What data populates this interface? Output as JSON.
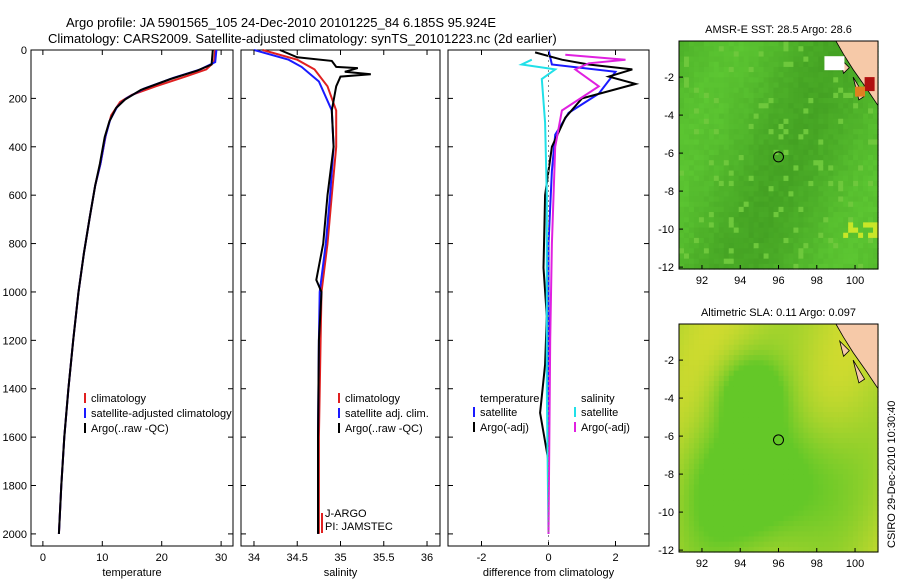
{
  "title": {
    "line1": "Argo profile: JA 5901565_105 24-Dec-2010 20101225_84 6.185S 95.924E",
    "line2": "Climatology: CARS2009. Satellite-adjusted climatology: synTS_20101223.nc (2d earlier)"
  },
  "side_label": "CSIRO 29-Dec-2010 10:30:40",
  "colors": {
    "climatology": "#e02020",
    "satellite": "#1a1aff",
    "argo": "#000000",
    "cyan": "#20e0e8",
    "magenta": "#e020e0"
  },
  "chart_data": [
    {
      "type": "line",
      "xlabel": "temperature",
      "xlim": [
        -2,
        32
      ],
      "ylim": [
        2050,
        0
      ],
      "xticks": [
        "0",
        "10",
        "20",
        "30"
      ],
      "yticks": [
        "0",
        "200",
        "400",
        "600",
        "800",
        "1000",
        "1200",
        "1400",
        "1600",
        "1800",
        "2000"
      ],
      "legend": [
        "climatology",
        "satellite-adjusted climatology",
        "Argo(..raw -QC)"
      ],
      "series": [
        {
          "color": "climatology",
          "points": [
            [
              29.0,
              0
            ],
            [
              28.8,
              50
            ],
            [
              27.5,
              80
            ],
            [
              24.0,
              110
            ],
            [
              19.0,
              150
            ],
            [
              15.0,
              185
            ],
            [
              13.0,
              215
            ],
            [
              11.5,
              270
            ],
            [
              10.6,
              350
            ],
            [
              9.7,
              470
            ],
            [
              8.8,
              560
            ],
            [
              7.9,
              690
            ],
            [
              6.9,
              840
            ],
            [
              6.0,
              1000
            ],
            [
              5.1,
              1200
            ],
            [
              4.3,
              1400
            ],
            [
              3.6,
              1600
            ],
            [
              3.1,
              1800
            ],
            [
              2.7,
              2000
            ]
          ]
        },
        {
          "color": "satellite",
          "points": [
            [
              29.2,
              0
            ],
            [
              29.0,
              50
            ],
            [
              26.5,
              80
            ],
            [
              22.0,
              115
            ],
            [
              17.0,
              160
            ],
            [
              14.0,
              200
            ],
            [
              12.5,
              235
            ],
            [
              11.3,
              290
            ],
            [
              10.5,
              360
            ],
            [
              9.7,
              470
            ],
            [
              8.8,
              560
            ],
            [
              7.9,
              690
            ],
            [
              6.9,
              840
            ],
            [
              6.0,
              1000
            ],
            [
              5.1,
              1200
            ],
            [
              4.3,
              1400
            ],
            [
              3.6,
              1600
            ],
            [
              3.1,
              1800
            ],
            [
              2.7,
              2000
            ]
          ]
        },
        {
          "color": "argo",
          "points": [
            [
              28.6,
              0
            ],
            [
              28.4,
              60
            ],
            [
              26.0,
              85
            ],
            [
              21.5,
              120
            ],
            [
              16.5,
              165
            ],
            [
              13.8,
              205
            ],
            [
              12.3,
              240
            ],
            [
              11.2,
              295
            ],
            [
              10.4,
              360
            ],
            [
              9.6,
              470
            ],
            [
              8.8,
              560
            ],
            [
              7.9,
              690
            ],
            [
              6.9,
              840
            ],
            [
              6.0,
              1000
            ],
            [
              5.1,
              1200
            ],
            [
              4.3,
              1400
            ],
            [
              3.6,
              1600
            ],
            [
              3.1,
              1800
            ],
            [
              2.7,
              2000
            ]
          ]
        }
      ]
    },
    {
      "type": "line",
      "xlabel": "salinity",
      "xlim": [
        33.85,
        36.15
      ],
      "ylim": [
        2050,
        0
      ],
      "xticks": [
        "34",
        "34.5",
        "35",
        "35.5",
        "36"
      ],
      "legend": [
        "climatology",
        "satellite adj. clim.",
        "Argo(..raw -QC)"
      ],
      "annotations": [
        "J-ARGO",
        "PI: JAMSTEC"
      ],
      "series": [
        {
          "color": "climatology",
          "points": [
            [
              34.1,
              0
            ],
            [
              34.5,
              40
            ],
            [
              34.7,
              80
            ],
            [
              34.85,
              150
            ],
            [
              34.95,
              250
            ],
            [
              34.95,
              400
            ],
            [
              34.9,
              600
            ],
            [
              34.85,
              800
            ],
            [
              34.78,
              1000
            ],
            [
              34.77,
              1200
            ],
            [
              34.75,
              1600
            ],
            [
              34.75,
              2000
            ]
          ]
        },
        {
          "color": "satellite",
          "points": [
            [
              34.0,
              0
            ],
            [
              34.4,
              40
            ],
            [
              34.55,
              70
            ],
            [
              34.75,
              130
            ],
            [
              34.9,
              250
            ],
            [
              34.92,
              400
            ],
            [
              34.88,
              600
            ],
            [
              34.83,
              800
            ],
            [
              34.76,
              1000
            ],
            [
              34.75,
              1200
            ],
            [
              34.74,
              1600
            ],
            [
              34.74,
              2000
            ]
          ]
        },
        {
          "color": "argo",
          "points": [
            [
              34.3,
              0
            ],
            [
              34.5,
              30
            ],
            [
              34.9,
              45
            ],
            [
              34.95,
              70
            ],
            [
              35.2,
              75
            ],
            [
              35.05,
              90
            ],
            [
              35.35,
              100
            ],
            [
              35.0,
              110
            ],
            [
              34.95,
              150
            ],
            [
              34.9,
              250
            ],
            [
              34.92,
              400
            ],
            [
              34.85,
              600
            ],
            [
              34.8,
              800
            ],
            [
              34.72,
              950
            ],
            [
              34.78,
              1000
            ],
            [
              34.75,
              1200
            ],
            [
              34.74,
              1600
            ],
            [
              34.74,
              2000
            ]
          ]
        }
      ]
    },
    {
      "type": "line",
      "xlabel": "difference from climatology",
      "xlim": [
        -3.0,
        3.0
      ],
      "ylim": [
        2050,
        0
      ],
      "xticks": [
        "-2",
        "0",
        "2"
      ],
      "legend": [
        "temperature",
        "satellite",
        "Argo(-adj)",
        "salinity",
        "satellite",
        "Argo(-adj)"
      ],
      "series": [
        {
          "color": "satellite",
          "points": [
            [
              0,
              0
            ],
            [
              0.1,
              60
            ],
            [
              2.0,
              90
            ],
            [
              1.5,
              180
            ],
            [
              0.6,
              260
            ],
            [
              0.2,
              350
            ],
            [
              0.1,
              500
            ],
            [
              0,
              800
            ],
            [
              0,
              1200
            ],
            [
              0,
              1600
            ],
            [
              0,
              2000
            ]
          ]
        },
        {
          "color": "argo",
          "points": [
            [
              -0.4,
              10
            ],
            [
              0.4,
              40
            ],
            [
              1.2,
              60
            ],
            [
              2.5,
              80
            ],
            [
              1.8,
              110
            ],
            [
              2.6,
              140
            ],
            [
              1.0,
              200
            ],
            [
              0.5,
              280
            ],
            [
              0.1,
              400
            ],
            [
              -0.1,
              600
            ],
            [
              -0.15,
              900
            ],
            [
              -0.05,
              1100
            ],
            [
              -0.1,
              1300
            ],
            [
              -0.25,
              1500
            ],
            [
              0,
              1700
            ],
            [
              0,
              2000
            ]
          ]
        },
        {
          "color": "cyan",
          "points": [
            [
              -0.5,
              40
            ],
            [
              -0.8,
              60
            ],
            [
              0.2,
              80
            ],
            [
              -0.2,
              120
            ],
            [
              -0.1,
              300
            ],
            [
              -0.05,
              600
            ],
            [
              -0.05,
              1000
            ],
            [
              -0.05,
              1400
            ],
            [
              0,
              2000
            ]
          ]
        },
        {
          "color": "magenta",
          "points": [
            [
              0.5,
              20
            ],
            [
              2.3,
              40
            ],
            [
              1.2,
              55
            ],
            [
              0.8,
              80
            ],
            [
              1.5,
              150
            ],
            [
              0.4,
              250
            ],
            [
              0.2,
              400
            ],
            [
              0.1,
              800
            ],
            [
              0.05,
              1200
            ],
            [
              0,
              2000
            ]
          ]
        }
      ]
    },
    {
      "type": "heatmap",
      "title": "AMSR-E SST: 28.5 Argo: 28.6",
      "xlim": [
        90.8,
        101.2
      ],
      "ylim": [
        -12.1,
        -0.1
      ],
      "xticks": [
        "92",
        "94",
        "96",
        "98",
        "100"
      ],
      "yticks": [
        "-2",
        "-4",
        "-6",
        "-8",
        "-10",
        "-12"
      ],
      "marker": [
        96.0,
        -6.2
      ]
    },
    {
      "type": "heatmap",
      "title": "Altimetric SLA: 0.11 Argo: 0.097",
      "xlim": [
        90.8,
        101.2
      ],
      "ylim": [
        -12.1,
        -0.1
      ],
      "xticks": [
        "92",
        "94",
        "96",
        "98",
        "100"
      ],
      "yticks": [
        "-2",
        "-4",
        "-6",
        "-8",
        "-10",
        "-12"
      ],
      "marker": [
        96.0,
        -6.2
      ]
    }
  ]
}
